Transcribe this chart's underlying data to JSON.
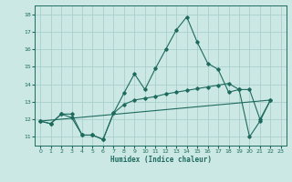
{
  "xlabel": "Humidex (Indice chaleur)",
  "bg_color": "#cce8e5",
  "grid_color": "#aacfcc",
  "line_color": "#1e6b5e",
  "xlim": [
    -0.5,
    23.5
  ],
  "ylim": [
    10.5,
    18.5
  ],
  "xticks": [
    0,
    1,
    2,
    3,
    4,
    5,
    6,
    7,
    8,
    9,
    10,
    11,
    12,
    13,
    14,
    15,
    16,
    17,
    18,
    19,
    20,
    21,
    22,
    23
  ],
  "yticks": [
    11,
    12,
    13,
    14,
    15,
    16,
    17,
    18
  ],
  "line1_x": [
    0,
    1,
    2,
    3,
    4,
    5,
    6,
    7,
    8,
    9,
    10,
    11,
    12,
    13,
    14,
    15,
    16,
    17,
    18,
    19,
    20,
    21,
    22
  ],
  "line1_y": [
    11.9,
    11.75,
    12.3,
    12.3,
    11.1,
    11.1,
    10.85,
    12.35,
    13.5,
    14.6,
    13.7,
    14.9,
    16.0,
    17.1,
    17.85,
    16.4,
    15.2,
    14.85,
    13.55,
    13.7,
    11.0,
    11.9,
    13.1
  ],
  "line2_x": [
    0,
    1,
    2,
    3,
    4,
    5,
    6,
    7,
    8,
    9,
    10,
    11,
    12,
    13,
    14,
    15,
    16,
    17,
    18,
    19,
    20,
    21,
    22
  ],
  "line2_y": [
    11.9,
    11.75,
    12.3,
    12.1,
    11.1,
    11.1,
    10.85,
    12.35,
    12.85,
    13.1,
    13.2,
    13.3,
    13.45,
    13.55,
    13.65,
    13.75,
    13.85,
    13.95,
    14.05,
    13.7,
    13.7,
    12.0,
    13.1
  ],
  "line3_x": [
    0,
    22
  ],
  "line3_y": [
    11.9,
    13.1
  ]
}
